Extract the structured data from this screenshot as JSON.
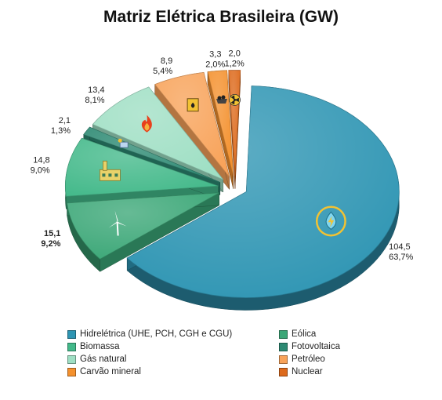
{
  "chart_data": {
    "type": "pie",
    "title": "Matriz Elétrica Brasileira (GW)",
    "unit": "GW",
    "slices": [
      {
        "name": "Hidrelétrica (UHE, PCH, CGH e CGU)",
        "value": 104.5,
        "value_label": "104,5",
        "percent_label": "63,7%",
        "color": "#2e95b3",
        "icon": "hydro-icon",
        "emphasis": false
      },
      {
        "name": "Eólica",
        "value": 15.1,
        "value_label": "15,1",
        "percent_label": "9,2%",
        "color": "#3ba777",
        "icon": "wind-turbine-icon",
        "emphasis": true
      },
      {
        "name": "Biomassa",
        "value": 14.8,
        "value_label": "14,8",
        "percent_label": "9,0%",
        "color": "#43b98a",
        "icon": "biomass-factory-icon",
        "emphasis": false
      },
      {
        "name": "Fotovoltaica",
        "value": 2.1,
        "value_label": "2,1",
        "percent_label": "1,3%",
        "color": "#2d8a73",
        "icon": "solar-panel-icon",
        "emphasis": false
      },
      {
        "name": "Gás natural",
        "value": 13.4,
        "value_label": "13,4",
        "percent_label": "8,1%",
        "color": "#9fdfc4",
        "icon": "flame-icon",
        "emphasis": false
      },
      {
        "name": "Petróleo",
        "value": 8.9,
        "value_label": "8,9",
        "percent_label": "5,4%",
        "color": "#f8a35a",
        "icon": "oil-barrel-icon",
        "emphasis": false
      },
      {
        "name": "Carvão mineral",
        "value": 3.3,
        "value_label": "3,3",
        "percent_label": "2,0%",
        "color": "#f4912e",
        "icon": "coal-cart-icon",
        "emphasis": false
      },
      {
        "name": "Nuclear",
        "value": 2.0,
        "value_label": "2,0",
        "percent_label": "1,2%",
        "color": "#dd6a1c",
        "icon": "radiation-icon",
        "emphasis": false
      }
    ],
    "legend_order": [
      "Hidrelétrica (UHE, PCH, CGH e CGU)",
      "Eólica",
      "Biomassa",
      "Fotovoltaica",
      "Gás natural",
      "Petróleo",
      "Carvão mineral",
      "Nuclear"
    ],
    "legend_position": "bottom",
    "style": "3d-exploded-pie"
  }
}
